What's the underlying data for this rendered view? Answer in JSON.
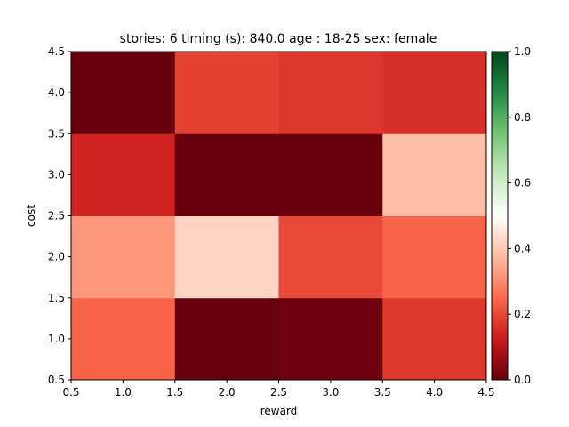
{
  "chart_data": {
    "type": "heatmap",
    "title": "stories: 6 timing (s): 840.0 age : 18-25 sex: female",
    "xlabel": "reward",
    "ylabel": "cost",
    "x_centers": [
      1,
      2,
      3,
      4
    ],
    "y_centers": [
      1,
      2,
      3,
      4
    ],
    "xlim": [
      0.5,
      4.5
    ],
    "ylim": [
      0.5,
      4.5
    ],
    "x_ticks": [
      "0.5",
      "1.0",
      "1.5",
      "2.0",
      "2.5",
      "3.0",
      "3.5",
      "4.0",
      "4.5"
    ],
    "y_ticks": [
      "0.5",
      "1.0",
      "1.5",
      "2.0",
      "2.5",
      "3.0",
      "3.5",
      "4.0",
      "4.5"
    ],
    "values": [
      [
        0.24,
        0.0,
        0.01,
        0.17
      ],
      [
        0.32,
        0.42,
        0.2,
        0.24
      ],
      [
        0.14,
        0.0,
        0.0,
        0.38
      ],
      [
        0.0,
        0.19,
        0.17,
        0.16
      ]
    ],
    "colormap": "RdGn",
    "vmin": 0.0,
    "vmax": 1.0,
    "colorbar_ticks": [
      "0.0",
      "0.2",
      "0.4",
      "0.6",
      "0.8",
      "1.0"
    ],
    "grid": false
  }
}
